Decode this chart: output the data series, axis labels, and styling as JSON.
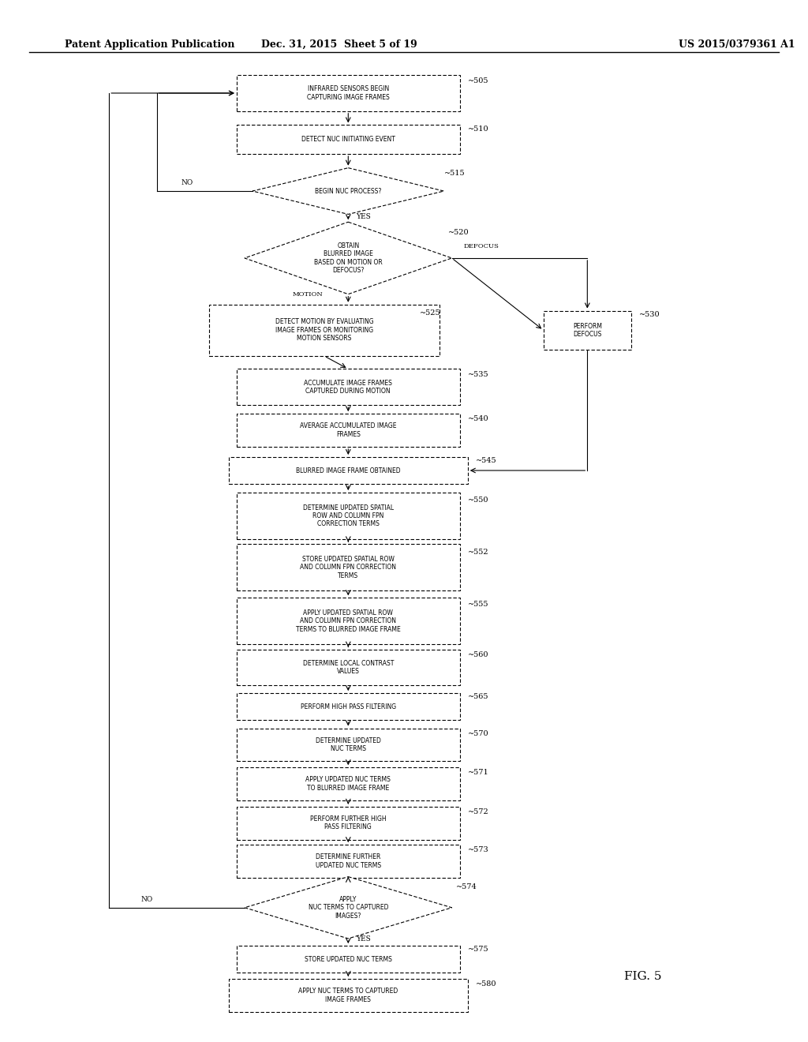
{
  "bg_color": "#ffffff",
  "header_left": "Patent Application Publication",
  "header_mid": "Dec. 31, 2015  Sheet 5 of 19",
  "header_right": "US 2015/0379361 A1",
  "fig_label": "FIG. 5"
}
